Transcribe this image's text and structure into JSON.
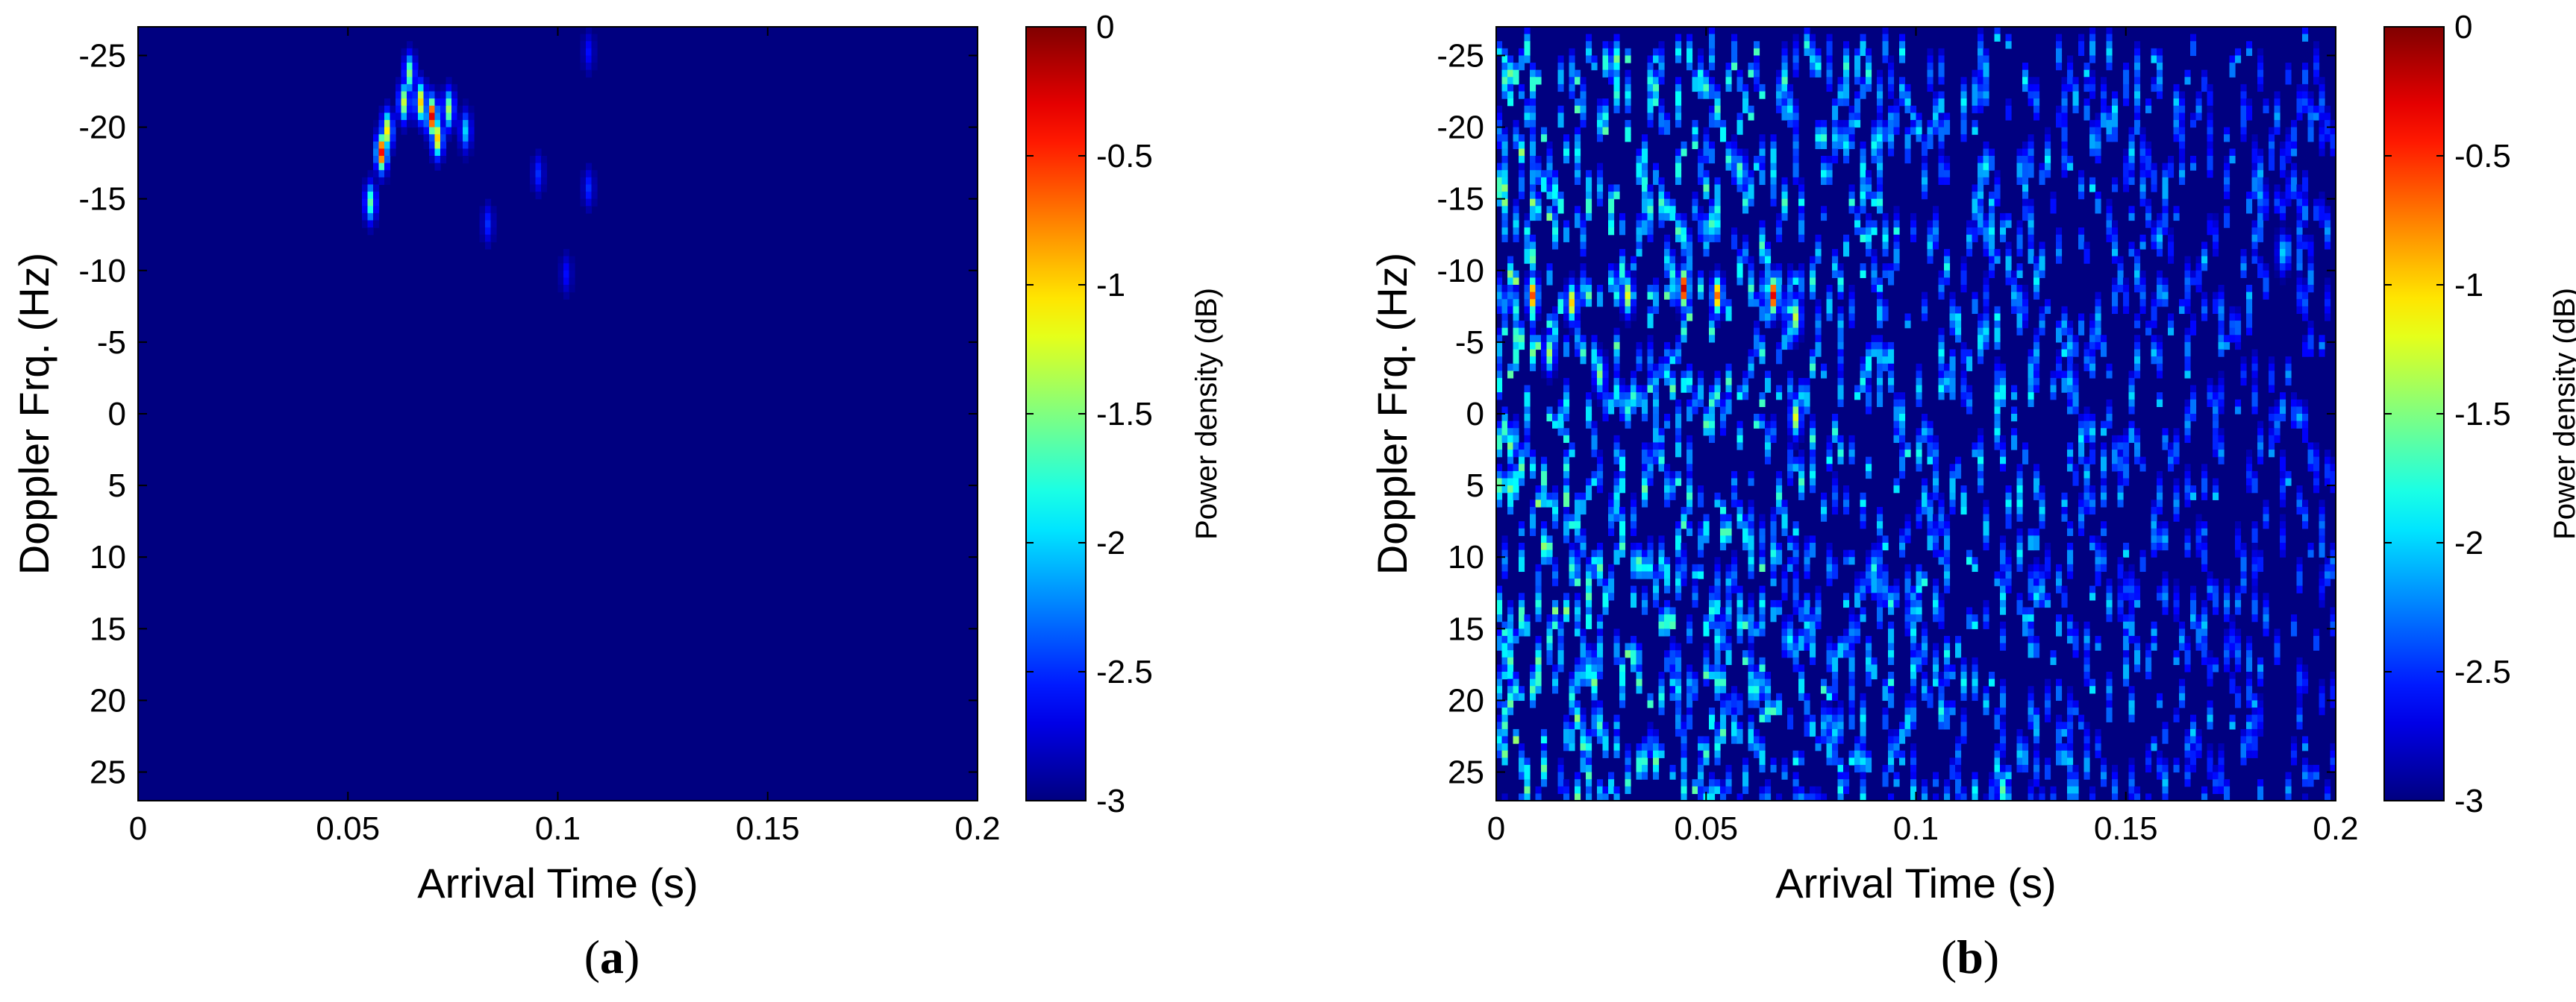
{
  "chart_data": [
    {
      "type": "heatmap",
      "panel_label": "(a)",
      "panel_letter": "a",
      "xlabel": "Arrival Time (s)",
      "ylabel": "Doppler Frq. (Hz)",
      "xlim": [
        0,
        0.2
      ],
      "ylim": [
        -27,
        27
      ],
      "y_direction": "reversed",
      "x_ticks": [
        "0",
        "0.05",
        "0.1",
        "0.15",
        "0.2"
      ],
      "x_tick_values": [
        0,
        0.05,
        0.1,
        0.15,
        0.2
      ],
      "y_ticks": [
        "-25",
        "-20",
        "-15",
        "-10",
        "-5",
        "0",
        "5",
        "10",
        "15",
        "20",
        "25"
      ],
      "y_tick_values": [
        -25,
        -20,
        -15,
        -10,
        -5,
        0,
        5,
        10,
        15,
        20,
        25
      ],
      "colorbar": {
        "label": "Power density (dB)",
        "range": [
          -3,
          0
        ],
        "ticks": [
          "0",
          "-0.5",
          "-1",
          "-1.5",
          "-2",
          "-2.5",
          "-3"
        ],
        "tick_values": [
          0,
          -0.5,
          -1,
          -1.5,
          -2,
          -2.5,
          -3
        ],
        "colormap": "jet"
      },
      "background_level": -3,
      "noise": {
        "amplitude": 0,
        "x_range": [
          0,
          0.2
        ],
        "x_decay": 0
      },
      "hotspots": [
        {
          "t": 0.055,
          "f": -15.0,
          "level": -1.6
        },
        {
          "t": 0.057,
          "f": -18.5,
          "level": -0.4
        },
        {
          "t": 0.059,
          "f": -20.0,
          "level": -1.1
        },
        {
          "t": 0.063,
          "f": -22.0,
          "level": -1.3
        },
        {
          "t": 0.064,
          "f": -24.0,
          "level": -1.5
        },
        {
          "t": 0.066,
          "f": -22.0,
          "level": -1.0
        },
        {
          "t": 0.069,
          "f": -21.0,
          "level": -0.3
        },
        {
          "t": 0.071,
          "f": -19.5,
          "level": -1.0
        },
        {
          "t": 0.073,
          "f": -21.5,
          "level": -1.4
        },
        {
          "t": 0.078,
          "f": -20.0,
          "level": -2.0
        },
        {
          "t": 0.083,
          "f": -13.5,
          "level": -2.5
        },
        {
          "t": 0.095,
          "f": -17.0,
          "level": -2.5
        },
        {
          "t": 0.101,
          "f": -10.0,
          "level": -2.6
        },
        {
          "t": 0.107,
          "f": -16.0,
          "level": -2.5
        },
        {
          "t": 0.107,
          "f": -25.5,
          "level": -2.6
        }
      ]
    },
    {
      "type": "heatmap",
      "panel_label": "(b)",
      "panel_letter": "b",
      "xlabel": "Arrival Time (s)",
      "ylabel": "Doppler Frq. (Hz)",
      "xlim": [
        0,
        0.2
      ],
      "ylim": [
        -27,
        27
      ],
      "y_direction": "reversed",
      "x_ticks": [
        "0",
        "0.05",
        "0.1",
        "0.15",
        "0.2"
      ],
      "x_tick_values": [
        0,
        0.05,
        0.1,
        0.15,
        0.2
      ],
      "y_ticks": [
        "-25",
        "-20",
        "-15",
        "-10",
        "-5",
        "0",
        "5",
        "10",
        "15",
        "20",
        "25"
      ],
      "y_tick_values": [
        -25,
        -20,
        -15,
        -10,
        -5,
        0,
        5,
        10,
        15,
        20,
        25
      ],
      "colorbar": {
        "label": "Power density (dB)",
        "range": [
          -3,
          0
        ],
        "ticks": [
          "0",
          "-0.5",
          "-1",
          "-1.5",
          "-2",
          "-2.5",
          "-3"
        ],
        "tick_values": [
          0,
          -0.5,
          -1,
          -1.5,
          -2,
          -2.5,
          -3
        ],
        "colormap": "jet"
      },
      "background_level": -3,
      "noise": {
        "amplitude": 1.6,
        "x_range": [
          0,
          0.2
        ],
        "x_decay": 0.45
      },
      "hotspots": [
        {
          "t": 0.008,
          "f": -8.5,
          "level": -0.6
        },
        {
          "t": 0.018,
          "f": -8.0,
          "level": -1.0
        },
        {
          "t": 0.03,
          "f": -8.5,
          "level": -1.2
        },
        {
          "t": 0.044,
          "f": -9.0,
          "level": -0.2
        },
        {
          "t": 0.052,
          "f": -8.5,
          "level": -0.7
        },
        {
          "t": 0.065,
          "f": -8.5,
          "level": -0.3
        },
        {
          "t": 0.071,
          "f": -7.0,
          "level": -1.3
        },
        {
          "t": 0.012,
          "f": -4.5,
          "level": -1.4
        },
        {
          "t": 0.024,
          "f": -3.0,
          "level": -1.5
        },
        {
          "t": 0.07,
          "f": 0.0,
          "level": -1.2
        },
        {
          "t": 0.12,
          "f": 26.0,
          "level": -1.6
        },
        {
          "t": 0.186,
          "f": -11.5,
          "level": -2.0
        }
      ]
    }
  ]
}
